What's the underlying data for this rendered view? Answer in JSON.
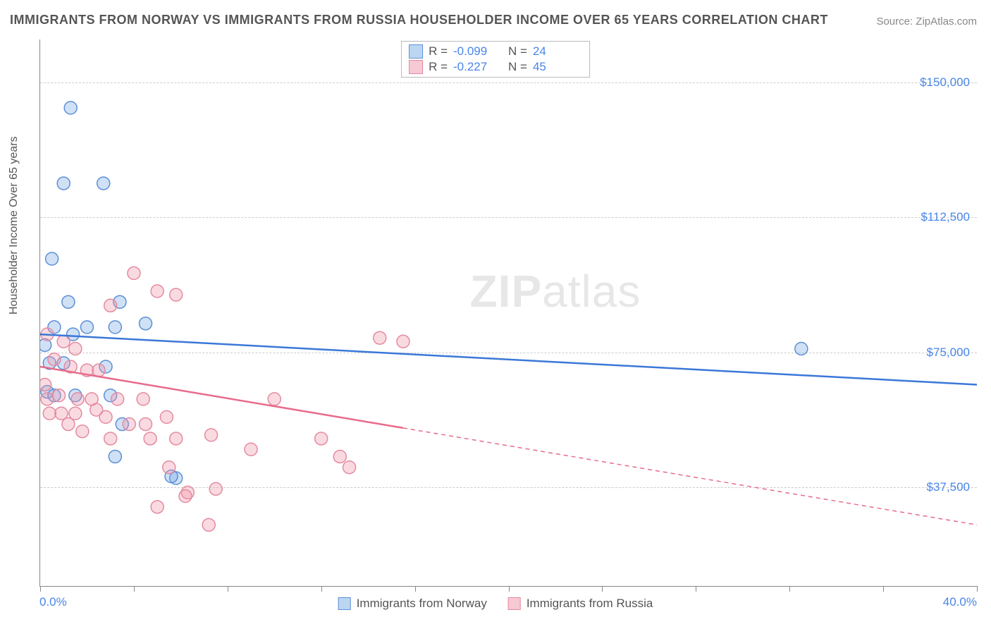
{
  "title": "IMMIGRANTS FROM NORWAY VS IMMIGRANTS FROM RUSSIA HOUSEHOLDER INCOME OVER 65 YEARS CORRELATION CHART",
  "source": "Source: ZipAtlas.com",
  "watermark_bold": "ZIP",
  "watermark_rest": "atlas",
  "ylabel": "Householder Income Over 65 years",
  "chart": {
    "type": "scatter",
    "xlim": [
      0,
      40
    ],
    "ylim": [
      10000,
      162000
    ],
    "x_tick_positions": [
      0,
      4,
      8,
      12,
      16,
      20,
      24,
      28,
      32,
      36,
      40
    ],
    "y_gridlines": [
      37500,
      75000,
      112500,
      150000
    ],
    "y_tick_labels": [
      "$37,500",
      "$75,000",
      "$112,500",
      "$150,000"
    ],
    "x_min_label": "0.0%",
    "x_max_label": "40.0%",
    "background_color": "#ffffff",
    "grid_color": "#cccccc",
    "axis_color": "#888888",
    "series": [
      {
        "name": "Immigrants from Norway",
        "color_fill": "rgba(120,170,230,0.35)",
        "color_stroke": "#5b8fd6",
        "swatch_fill": "#bcd6f2",
        "swatch_border": "#5b8fd6",
        "R": "-0.099",
        "N": "24",
        "marker_radius": 9,
        "regression": {
          "x1": 0,
          "y1": 80000,
          "x2": 40,
          "y2": 66000,
          "solid_until_x": 40
        },
        "line_color": "#3b78d8",
        "points": [
          [
            1.3,
            143000
          ],
          [
            1.0,
            122000
          ],
          [
            2.7,
            122000
          ],
          [
            0.5,
            101000
          ],
          [
            1.2,
            89000
          ],
          [
            3.4,
            89000
          ],
          [
            0.6,
            82000
          ],
          [
            1.4,
            80000
          ],
          [
            2.0,
            82000
          ],
          [
            3.2,
            82000
          ],
          [
            4.5,
            83000
          ],
          [
            0.2,
            77000
          ],
          [
            0.4,
            72000
          ],
          [
            1.0,
            72000
          ],
          [
            2.8,
            71000
          ],
          [
            0.3,
            64000
          ],
          [
            0.6,
            63000
          ],
          [
            1.5,
            63000
          ],
          [
            3.0,
            63000
          ],
          [
            3.5,
            55000
          ],
          [
            3.2,
            46000
          ],
          [
            5.8,
            40000
          ],
          [
            5.6,
            40500
          ],
          [
            32.5,
            76000
          ]
        ]
      },
      {
        "name": "Immigrants from Russia",
        "color_fill": "rgba(240,150,170,0.35)",
        "color_stroke": "#e48aa0",
        "swatch_fill": "#f6c9d4",
        "swatch_border": "#e48aa0",
        "R": "-0.227",
        "N": "45",
        "marker_radius": 9,
        "regression": {
          "x1": 0,
          "y1": 71000,
          "x2": 40,
          "y2": 27000,
          "solid_until_x": 15.5
        },
        "line_color": "#e86b8a",
        "points": [
          [
            4.0,
            97000
          ],
          [
            5.0,
            92000
          ],
          [
            5.8,
            91000
          ],
          [
            3.0,
            88000
          ],
          [
            0.3,
            80000
          ],
          [
            1.0,
            78000
          ],
          [
            1.5,
            76000
          ],
          [
            0.6,
            73000
          ],
          [
            1.3,
            71000
          ],
          [
            2.0,
            70000
          ],
          [
            2.5,
            70000
          ],
          [
            0.2,
            66000
          ],
          [
            0.3,
            62000
          ],
          [
            0.8,
            63000
          ],
          [
            1.6,
            62000
          ],
          [
            2.2,
            62000
          ],
          [
            3.3,
            62000
          ],
          [
            4.4,
            62000
          ],
          [
            14.5,
            79000
          ],
          [
            15.5,
            78000
          ],
          [
            2.8,
            57000
          ],
          [
            3.8,
            55000
          ],
          [
            4.5,
            55000
          ],
          [
            5.4,
            57000
          ],
          [
            1.2,
            55000
          ],
          [
            1.8,
            53000
          ],
          [
            3.0,
            51000
          ],
          [
            4.7,
            51000
          ],
          [
            5.8,
            51000
          ],
          [
            7.3,
            52000
          ],
          [
            12.0,
            51000
          ],
          [
            9.0,
            48000
          ],
          [
            10.0,
            62000
          ],
          [
            12.8,
            46000
          ],
          [
            13.2,
            43000
          ],
          [
            5.5,
            43000
          ],
          [
            6.3,
            36000
          ],
          [
            6.2,
            35000
          ],
          [
            7.5,
            37000
          ],
          [
            5.0,
            32000
          ],
          [
            7.2,
            27000
          ],
          [
            0.4,
            58000
          ],
          [
            0.9,
            58000
          ],
          [
            1.5,
            58000
          ],
          [
            2.4,
            59000
          ]
        ]
      }
    ]
  },
  "legend": {
    "items": [
      {
        "label": "Immigrants from Norway"
      },
      {
        "label": "Immigrants from Russia"
      }
    ]
  },
  "stat_labels": {
    "R": "R =",
    "N": "N ="
  }
}
